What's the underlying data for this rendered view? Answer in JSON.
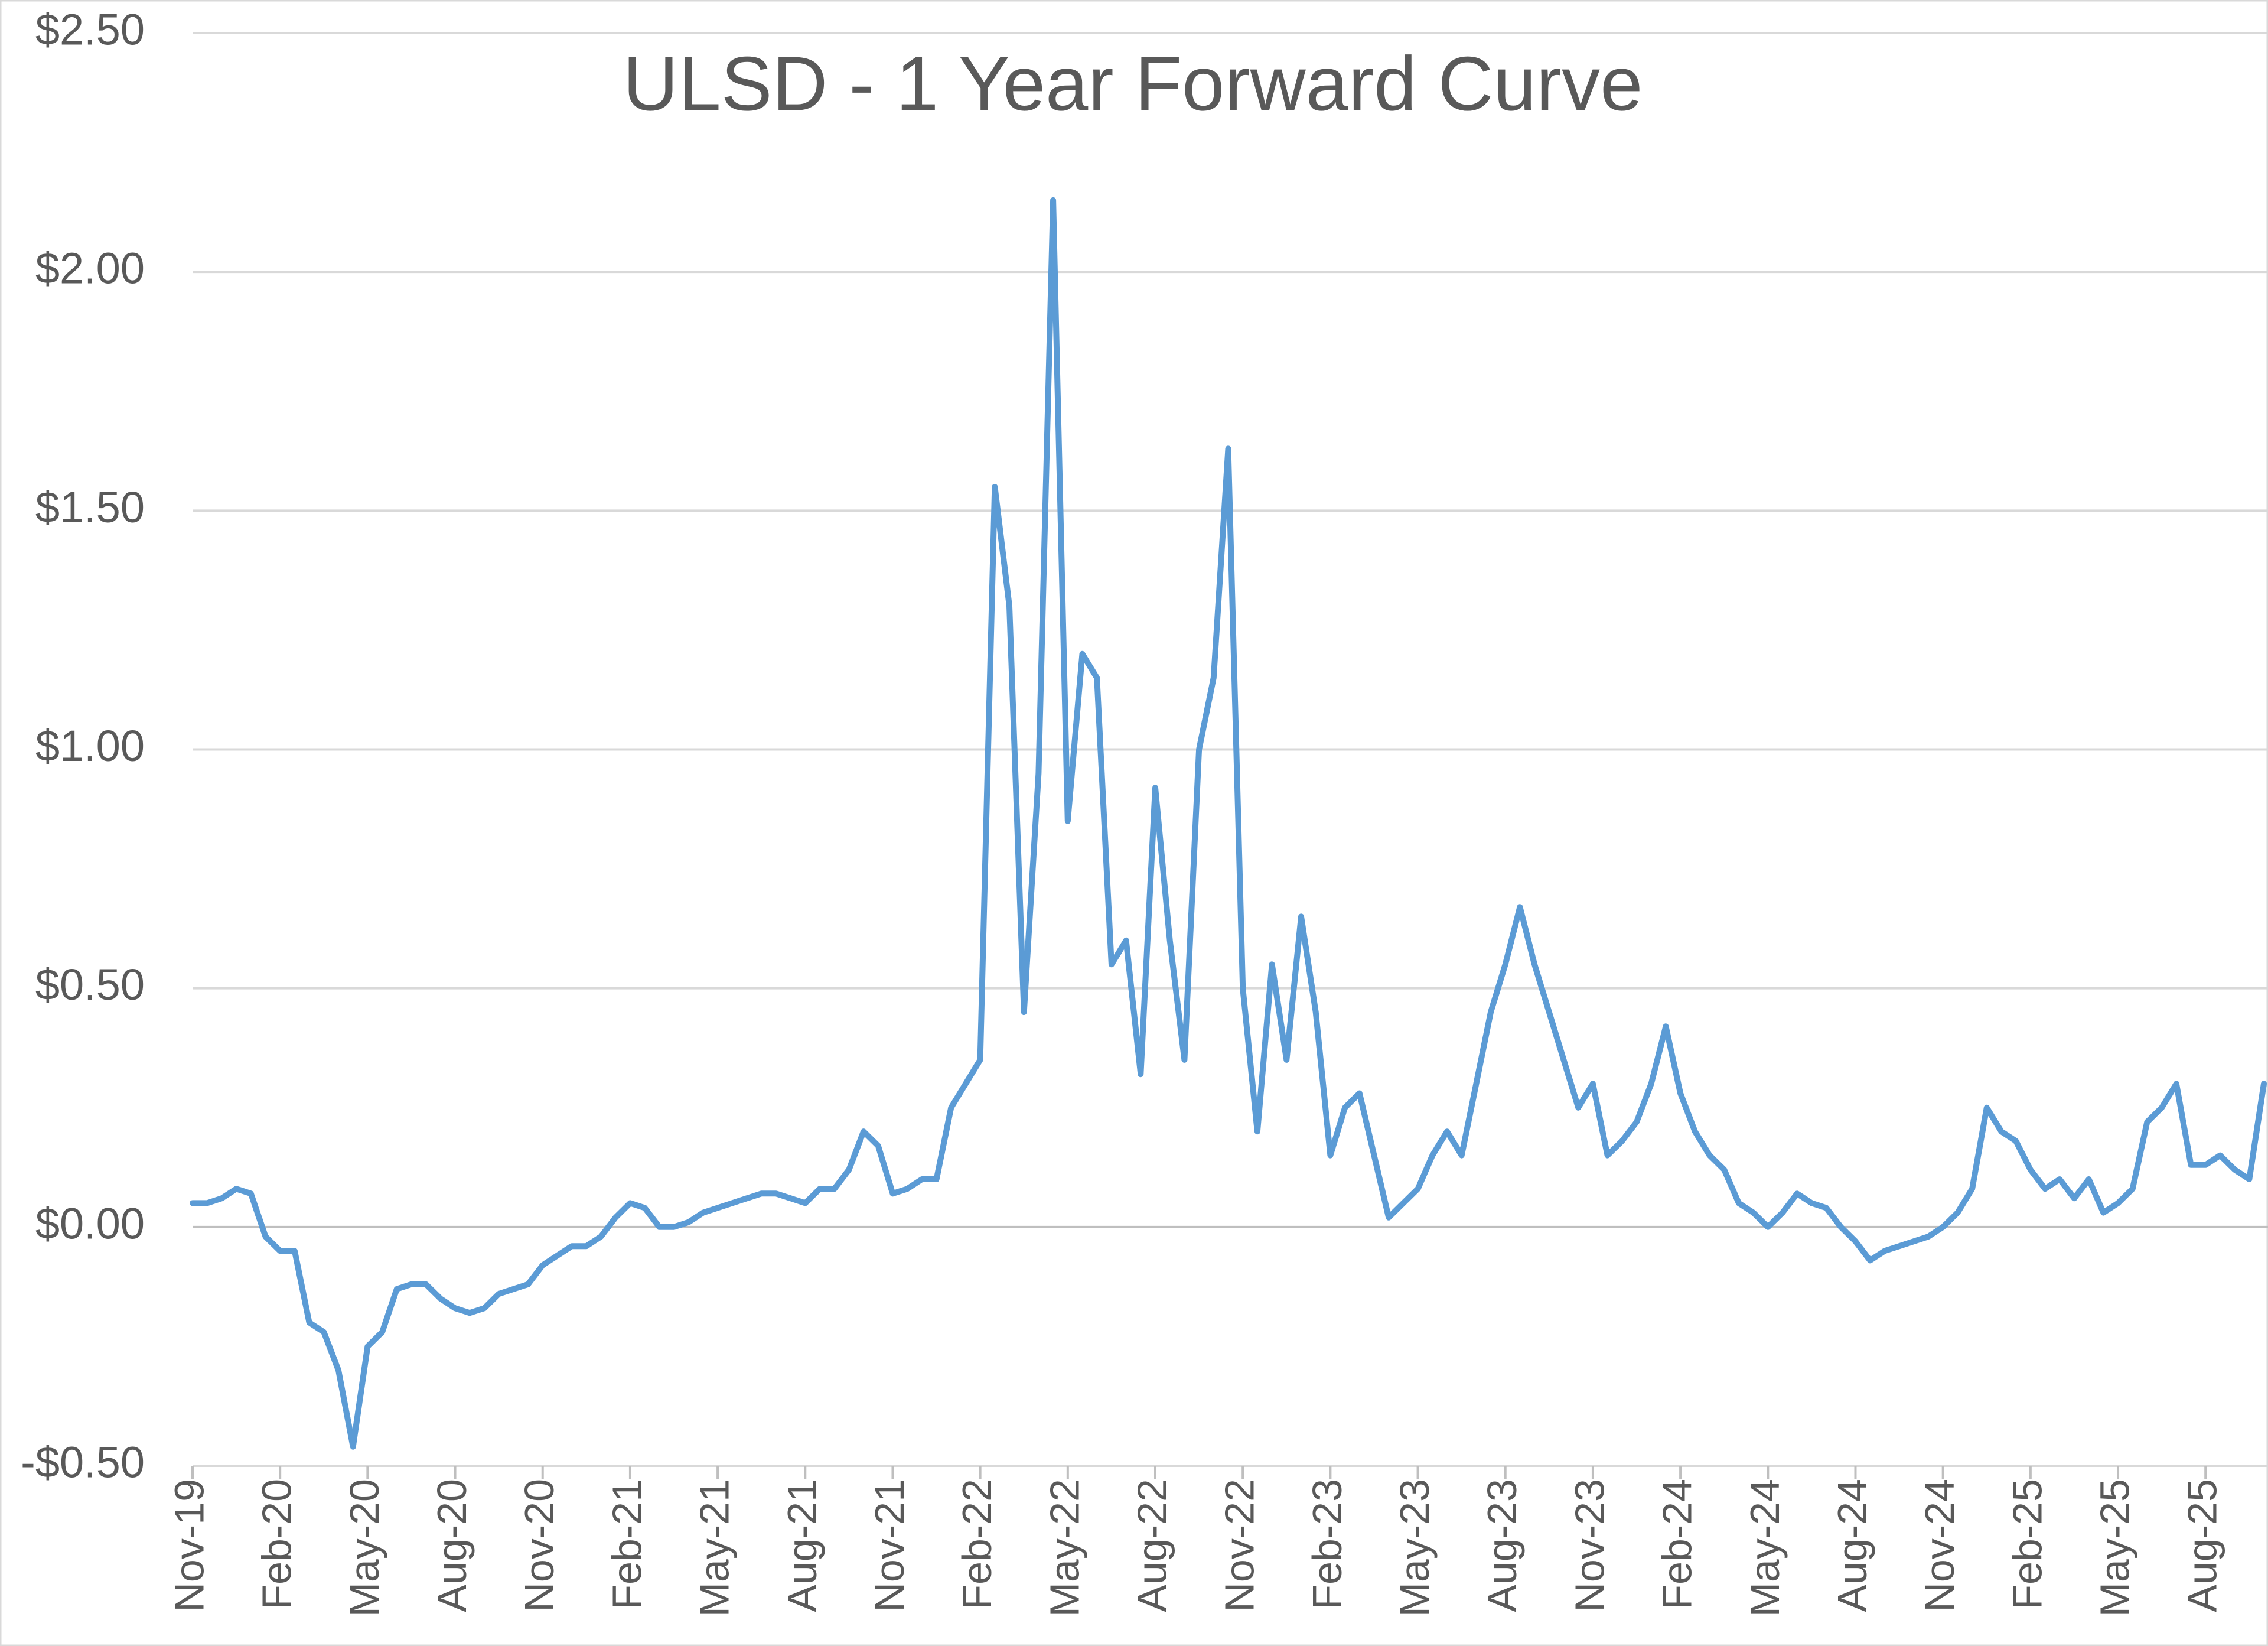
{
  "chart_data": {
    "type": "line",
    "title": "ULSD - 1 Year Forward Curve",
    "categories": [
      "Nov-19",
      null,
      null,
      null,
      null,
      null,
      "Feb-20",
      null,
      null,
      null,
      null,
      null,
      "May-20",
      null,
      null,
      null,
      null,
      null,
      "Aug-20",
      null,
      null,
      null,
      null,
      null,
      "Nov-20",
      null,
      null,
      null,
      null,
      null,
      "Feb-21",
      null,
      null,
      null,
      null,
      null,
      "May-21",
      null,
      null,
      null,
      null,
      null,
      "Aug-21",
      null,
      null,
      null,
      null,
      null,
      "Nov-21",
      null,
      null,
      null,
      null,
      null,
      "Feb-22",
      null,
      null,
      null,
      null,
      null,
      "May-22",
      null,
      null,
      null,
      null,
      null,
      "Aug-22",
      null,
      null,
      null,
      null,
      null,
      "Nov-22",
      null,
      null,
      null,
      null,
      null,
      "Feb-23",
      null,
      null,
      null,
      null,
      null,
      "May-23",
      null,
      null,
      null,
      null,
      null,
      "Aug-23",
      null,
      null,
      null,
      null,
      null,
      "Nov-23",
      null,
      null,
      null,
      null,
      null,
      "Feb-24",
      null,
      null,
      null,
      null,
      null,
      "May-24",
      null,
      null,
      null,
      null,
      null,
      "Aug-24",
      null,
      null,
      null,
      null,
      null,
      "Nov-24",
      null,
      null,
      null,
      null,
      null,
      "Feb-25",
      null,
      null,
      null,
      null,
      null,
      "May-25",
      null,
      null,
      null,
      null,
      null,
      "Aug-25",
      null,
      null,
      null,
      null
    ],
    "values": [
      0.05,
      0.05,
      0.06,
      0.08,
      0.07,
      -0.02,
      -0.05,
      -0.05,
      -0.2,
      -0.22,
      -0.3,
      -0.46,
      -0.25,
      -0.22,
      -0.13,
      -0.12,
      -0.12,
      -0.15,
      -0.17,
      -0.18,
      -0.17,
      -0.14,
      -0.13,
      -0.12,
      -0.08,
      -0.06,
      -0.04,
      -0.04,
      -0.02,
      0.02,
      0.05,
      0.04,
      0.0,
      0.0,
      0.01,
      0.03,
      0.04,
      0.05,
      0.06,
      0.07,
      0.07,
      0.06,
      0.05,
      0.08,
      0.08,
      0.12,
      0.2,
      0.17,
      0.07,
      0.08,
      0.1,
      0.1,
      0.25,
      0.3,
      0.35,
      1.55,
      1.3,
      0.45,
      0.95,
      2.15,
      0.85,
      1.2,
      1.15,
      0.55,
      0.6,
      0.32,
      0.92,
      0.6,
      0.35,
      1.0,
      1.15,
      1.63,
      0.5,
      0.2,
      0.55,
      0.35,
      0.65,
      0.45,
      0.15,
      0.25,
      0.28,
      0.15,
      0.02,
      0.05,
      0.08,
      0.15,
      0.2,
      0.15,
      0.3,
      0.45,
      0.55,
      0.67,
      0.55,
      0.45,
      0.35,
      0.25,
      0.3,
      0.15,
      0.18,
      0.22,
      0.3,
      0.42,
      0.28,
      0.2,
      0.15,
      0.12,
      0.05,
      0.03,
      0.0,
      0.03,
      0.07,
      0.05,
      0.04,
      0.0,
      -0.03,
      -0.07,
      -0.05,
      -0.04,
      -0.03,
      -0.02,
      0.0,
      0.03,
      0.08,
      0.25,
      0.2,
      0.18,
      0.12,
      0.08,
      0.1,
      0.06,
      0.1,
      0.03,
      0.05,
      0.08,
      0.22,
      0.25,
      0.3,
      0.13,
      0.13,
      0.15,
      0.12,
      0.1,
      0.3
    ],
    "color": "#5b9bd5",
    "ylim": [
      -0.5,
      2.5
    ],
    "yticks": [
      {
        "value": -0.5,
        "label": "-$0.50"
      },
      {
        "value": 0,
        "label": "$0.00"
      },
      {
        "value": 0.5,
        "label": "$0.50"
      },
      {
        "value": 1,
        "label": "$1.00"
      },
      {
        "value": 1.5,
        "label": "$1.50"
      },
      {
        "value": 2,
        "label": "$2.00"
      },
      {
        "value": 2.5,
        "label": "$2.50"
      }
    ],
    "grid": true
  }
}
